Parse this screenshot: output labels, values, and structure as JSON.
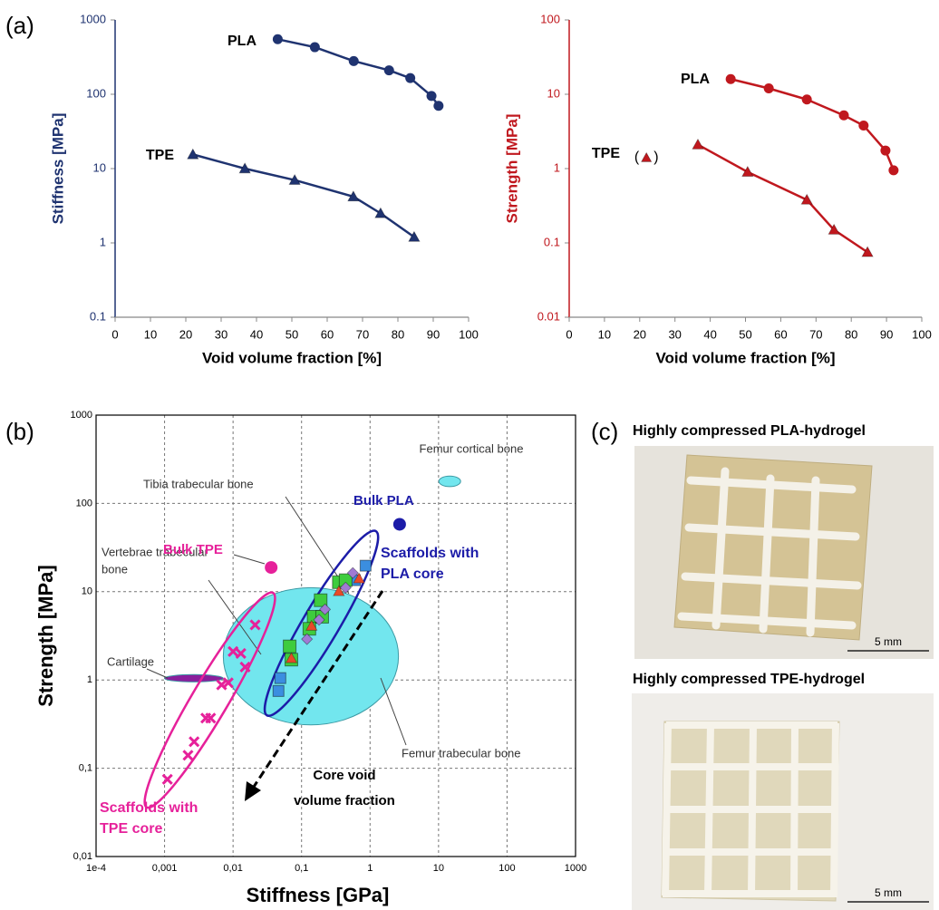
{
  "panel_labels": [
    "(a)",
    "(b)",
    "(c)"
  ],
  "chart_data": [
    {
      "type": "line",
      "ylabel": "Stiffness [MPa]",
      "xlabel": "Void volume fraction [%]",
      "log_y": true,
      "xlim": [
        0,
        100
      ],
      "xticks": [
        0,
        10,
        20,
        30,
        40,
        50,
        60,
        70,
        80,
        90,
        100
      ],
      "ylim": [
        0.1,
        1000
      ],
      "yticks": [
        0.1,
        1,
        10,
        100,
        1000
      ],
      "axis_color": "#1f3370",
      "series": [
        {
          "name": "PLA",
          "color": "#1f3370",
          "marker": "circle",
          "x": [
            46,
            56.5,
            67.5,
            77.5,
            83.5,
            89.5,
            91.5
          ],
          "values": [
            550,
            430,
            280,
            210,
            165,
            95,
            70
          ]
        },
        {
          "name": "TPE",
          "color": "#1f3370",
          "marker": "triangle",
          "x": [
            22,
            36.7,
            50.8,
            67.4,
            75.1,
            84.6
          ],
          "values": [
            15.5,
            10,
            7,
            4.2,
            2.5,
            1.2
          ]
        }
      ]
    },
    {
      "type": "line",
      "ylabel": "Strength [MPa]",
      "xlabel": "Void volume fraction [%]",
      "log_y": true,
      "xlim": [
        0,
        100
      ],
      "xticks": [
        0,
        10,
        20,
        30,
        40,
        50,
        60,
        70,
        80,
        90,
        100
      ],
      "ylim": [
        0.01,
        100
      ],
      "yticks": [
        0.01,
        0.1,
        1,
        10,
        100
      ],
      "axis_color": "#c0181e",
      "series": [
        {
          "name": "PLA",
          "color": "#c0181e",
          "marker": "circle",
          "x": [
            45.8,
            56.6,
            67.4,
            77.9,
            83.5,
            89.7,
            92
          ],
          "values": [
            16,
            12,
            8.5,
            5.2,
            3.8,
            1.75,
            0.95
          ]
        },
        {
          "name": "TPE",
          "color": "#c0181e",
          "marker": "triangle",
          "x": [
            36.5,
            50.6,
            67.4,
            75.1,
            84.6
          ],
          "values": [
            2.1,
            0.9,
            0.38,
            0.15,
            0.075
          ]
        }
      ],
      "bracketed_points": [
        {
          "x": 21.9,
          "y": 1.4,
          "open": "(",
          "close": ")",
          "color": "#c0181e",
          "marker": "triangle"
        }
      ]
    },
    {
      "type": "scatter",
      "xlabel": "Stiffness [GPa]",
      "ylabel": "Strength [MPa]",
      "log_x": true,
      "log_y": true,
      "grid": true,
      "xlim": [
        0.0001,
        1000
      ],
      "xticks": [
        {
          "value": 0.0001,
          "label": "1e-4"
        },
        {
          "value": 0.001,
          "label": "0,001"
        },
        {
          "value": 0.01,
          "label": "0,01"
        },
        {
          "value": 0.1,
          "label": "0,1"
        },
        1,
        10,
        100,
        1000
      ],
      "ylim": [
        0.01,
        1000
      ],
      "yticks": [
        {
          "value": 0.01,
          "label": "0,01"
        },
        {
          "value": 0.1,
          "label": "0,1"
        },
        1,
        10,
        100,
        1000
      ],
      "regions": [
        {
          "name": "Femur cortical bone",
          "xlim": [
            10.1,
            21
          ],
          "ylim": [
            155,
            204
          ],
          "color": "#72e6ee"
        },
        {
          "name": "Femur trabecular bone",
          "xlim": [
            0.0072,
            2.6
          ],
          "ylim": [
            0.31,
            11.1
          ],
          "color": "#72e6ee"
        },
        {
          "name": "Cartilage",
          "xlim": [
            0.001,
            0.0072
          ],
          "ylim": [
            0.95,
            1.15
          ],
          "color": "#8a1f9c"
        }
      ],
      "points": [
        {
          "name": "Bulk PLA",
          "x": 2.7,
          "y": 58,
          "color": "#1c1ca8"
        },
        {
          "name": "Bulk TPE",
          "x": 0.036,
          "y": 18.8,
          "color": "#e6219a"
        }
      ],
      "series": [
        {
          "name": [
            "Scaffolds with",
            "PLA core"
          ],
          "color": "#1c1ca8",
          "envelope": {
            "from": [
              0.04,
              0.55
            ],
            "to": [
              0.95,
              35
            ]
          },
          "x": [
            0.046,
            0.049,
            0.86,
            0.6,
            0.067,
            0.071,
            0.15,
            0.19,
            0.35,
            0.44,
            0.13,
            0.2,
            0.071,
            0.14,
            0.35,
            0.69,
            0.12,
            0.22,
            0.44,
            0.56,
            0.18
          ],
          "values": [
            0.75,
            1.05,
            19.7,
            13.5,
            2.4,
            1.7,
            5.2,
            8,
            12.8,
            13.5,
            3.8,
            5.2,
            1.76,
            4.1,
            10.1,
            14.1,
            2.9,
            6.3,
            11.1,
            16.3,
            4.8
          ],
          "markers": [
            "square",
            "square",
            "square",
            "square",
            "square",
            "square",
            "square",
            "square",
            "square",
            "square",
            "square",
            "square",
            "triangle",
            "triangle",
            "triangle",
            "triangle",
            "diamond",
            "diamond",
            "diamond",
            "diamond",
            "diamond"
          ],
          "colors": [
            "#3b8ee0",
            "#3b8ee0",
            "#3b8ee0",
            "#3b8ee0",
            "#3ecc3e",
            "#3ecc3e",
            "#3ecc3e",
            "#3ecc3e",
            "#3ecc3e",
            "#3ecc3e",
            "#3ecc3e",
            "#3ecc3e",
            "#e84a2a",
            "#e84a2a",
            "#e84a2a",
            "#e84a2a",
            "#a07ad4",
            "#a07ad4",
            "#a07ad4",
            "#a07ad4",
            "#a07ad4"
          ]
        },
        {
          "name": [
            "Scaffolds with",
            "TPE core"
          ],
          "color": "#e6219a",
          "marker": "x",
          "envelope": {
            "from": [
              0.0007,
              0.05
            ],
            "to": [
              0.03,
              7
            ]
          },
          "x": [
            0.0011,
            0.0022,
            0.0027,
            0.004,
            0.0047,
            0.0068,
            0.0085,
            0.01,
            0.013,
            0.015,
            0.021
          ],
          "values": [
            0.075,
            0.14,
            0.2,
            0.37,
            0.37,
            0.88,
            0.93,
            2.1,
            2.0,
            1.4,
            4.2
          ]
        }
      ],
      "annotations": [
        {
          "text": [
            "Tibia trabecular bone"
          ]
        },
        {
          "text": [
            "Vertebrae trabecular",
            "bone"
          ]
        },
        {
          "text": [
            "Core void",
            "volume fraction"
          ]
        }
      ]
    }
  ],
  "photos": [
    {
      "title": "Highly compressed PLA-hydrogel",
      "scale_bar": "5 mm"
    },
    {
      "title": "Highly compressed TPE-hydrogel",
      "scale_bar": "5 mm"
    }
  ]
}
